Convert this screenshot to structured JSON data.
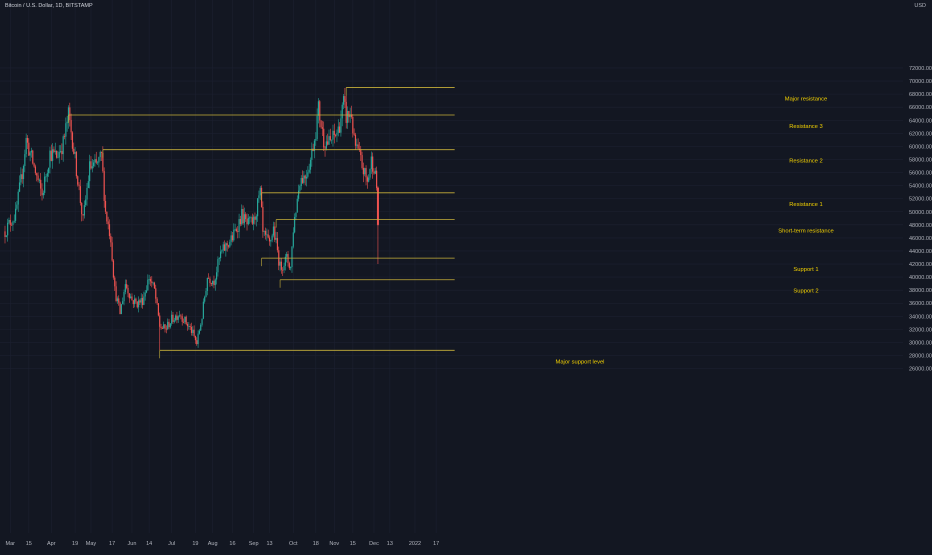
{
  "header": {
    "symbol_title": "Bitcoin / U.S. Dollar, 1D, BITSTAMP",
    "currency": "USD"
  },
  "colors": {
    "background": "#131722",
    "up_candle": "#26a69a",
    "down_candle": "#ef5350",
    "level_line": "#c7b03a",
    "level_label": "#f5d300",
    "axis_text": "#b2b5be",
    "grid": "#1c2030"
  },
  "chart_data": {
    "type": "candlestick",
    "title": "Bitcoin / U.S. Dollar, 1D, BITSTAMP",
    "y_axis_unit": "USD",
    "ylim": [
      25000,
      73000
    ],
    "y_ticks": [
      "26000.00",
      "28000.00",
      "30000.00",
      "32000.00",
      "34000.00",
      "36000.00",
      "38000.00",
      "40000.00",
      "42000.00",
      "44000.00",
      "46000.00",
      "48000.00",
      "50000.00",
      "52000.00",
      "54000.00",
      "56000.00",
      "58000.00",
      "60000.00",
      "62000.00",
      "64000.00",
      "66000.00",
      "68000.00",
      "70000.00",
      "72000.00"
    ],
    "x_ticks": [
      "Mar",
      "15",
      "Apr",
      "19",
      "May",
      "17",
      "Jun",
      "14",
      "Jul",
      "19",
      "Aug",
      "16",
      "Sep",
      "13",
      "Oct",
      "18",
      "Nov",
      "15",
      "Dec",
      "13",
      "2022",
      "17"
    ],
    "grid": true,
    "price_path": [
      [
        "2021-02-25",
        47000
      ],
      [
        "2021-03-01",
        48500
      ],
      [
        "2021-03-05",
        49500
      ],
      [
        "2021-03-10",
        56000
      ],
      [
        "2021-03-13",
        61000
      ],
      [
        "2021-03-18",
        57500
      ],
      [
        "2021-03-25",
        52500
      ],
      [
        "2021-03-31",
        59000
      ],
      [
        "2021-04-05",
        58500
      ],
      [
        "2021-04-10",
        60500
      ],
      [
        "2021-04-14",
        64800
      ],
      [
        "2021-04-17",
        61000
      ],
      [
        "2021-04-21",
        55000
      ],
      [
        "2021-04-25",
        48500
      ],
      [
        "2021-04-30",
        56800
      ],
      [
        "2021-05-05",
        57000
      ],
      [
        "2021-05-09",
        58500
      ],
      [
        "2021-05-12",
        50000
      ],
      [
        "2021-05-16",
        46000
      ],
      [
        "2021-05-19",
        38000
      ],
      [
        "2021-05-23",
        34500
      ],
      [
        "2021-05-27",
        39000
      ],
      [
        "2021-06-01",
        36500
      ],
      [
        "2021-06-05",
        36000
      ],
      [
        "2021-06-09",
        36500
      ],
      [
        "2021-06-14",
        40000
      ],
      [
        "2021-06-18",
        38000
      ],
      [
        "2021-06-22",
        32500
      ],
      [
        "2021-06-26",
        32000
      ],
      [
        "2021-07-01",
        33500
      ],
      [
        "2021-07-07",
        34500
      ],
      [
        "2021-07-12",
        33000
      ],
      [
        "2021-07-16",
        31800
      ],
      [
        "2021-07-20",
        29800
      ],
      [
        "2021-07-24",
        34000
      ],
      [
        "2021-07-28",
        40000
      ],
      [
        "2021-08-02",
        39500
      ],
      [
        "2021-08-07",
        43500
      ],
      [
        "2021-08-12",
        45000
      ],
      [
        "2021-08-16",
        46000
      ],
      [
        "2021-08-23",
        49500
      ],
      [
        "2021-08-27",
        48000
      ],
      [
        "2021-09-01",
        48500
      ],
      [
        "2021-09-06",
        52800
      ],
      [
        "2021-09-08",
        46500
      ],
      [
        "2021-09-13",
        45000
      ],
      [
        "2021-09-16",
        47500
      ],
      [
        "2021-09-21",
        41500
      ],
      [
        "2021-09-26",
        42800
      ],
      [
        "2021-09-29",
        41500
      ],
      [
        "2021-10-01",
        47500
      ],
      [
        "2021-10-06",
        55000
      ],
      [
        "2021-10-10",
        55500
      ],
      [
        "2021-10-14",
        58000
      ],
      [
        "2021-10-18",
        62500
      ],
      [
        "2021-10-20",
        65800
      ],
      [
        "2021-10-24",
        61000
      ],
      [
        "2021-10-28",
        60500
      ],
      [
        "2021-11-01",
        61500
      ],
      [
        "2021-11-04",
        62500
      ],
      [
        "2021-11-08",
        66500
      ],
      [
        "2021-11-10",
        64500
      ],
      [
        "2021-11-14",
        65000
      ],
      [
        "2021-11-16",
        60500
      ],
      [
        "2021-11-20",
        58500
      ],
      [
        "2021-11-23",
        56300
      ],
      [
        "2021-11-26",
        54500
      ],
      [
        "2021-11-29",
        57800
      ],
      [
        "2021-12-01",
        57000
      ],
      [
        "2021-12-03",
        53700
      ],
      [
        "2021-12-04",
        48000
      ]
    ],
    "price_path_extremes": {
      "high": 69000,
      "low": 28800,
      "last_low_wick": 42000
    },
    "levels": [
      {
        "label": "Major resistance",
        "price": 69000,
        "start": "2021-11-10",
        "end": "2022-01-31"
      },
      {
        "label": "Resistance 3",
        "price": 64800,
        "start": "2021-04-14",
        "end": "2022-01-31"
      },
      {
        "label": "Resistance 2",
        "price": 59500,
        "start": "2021-05-10",
        "end": "2022-01-31"
      },
      {
        "label": "Resistance 1",
        "price": 52900,
        "start": "2021-09-07",
        "end": "2022-01-31"
      },
      {
        "label": "Short-term resistance",
        "price": 48800,
        "start": "2021-09-18",
        "end": "2022-01-31"
      },
      {
        "label": "Support 1",
        "price": 42900,
        "start": "2021-09-07",
        "end": "2022-01-31"
      },
      {
        "label": "Support 2",
        "price": 39600,
        "start": "2021-09-21",
        "end": "2022-01-31"
      },
      {
        "label": "Major support level",
        "price": 28800,
        "start": "2021-06-22",
        "end": "2022-01-31"
      }
    ]
  }
}
